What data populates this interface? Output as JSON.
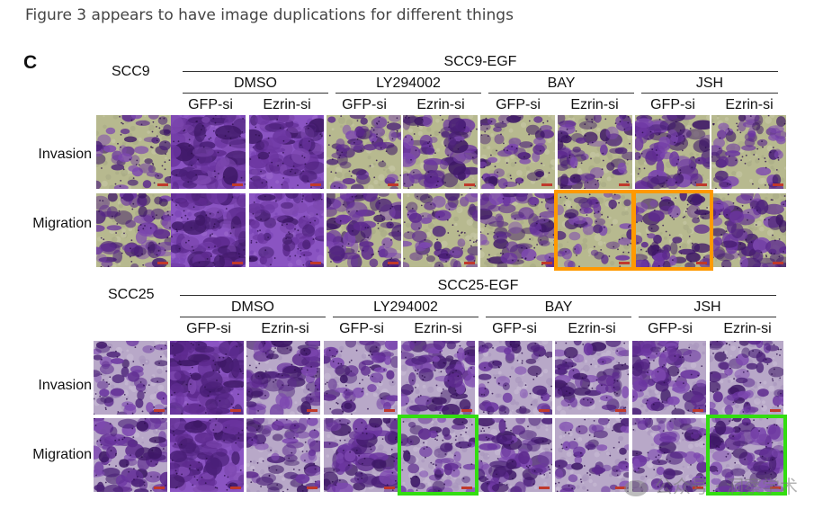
{
  "caption": "Figure 3 appears to have image duplications for different things",
  "panel_label": "C",
  "watermark": "公众号 · 洞察学术",
  "highlight_colors": {
    "orange": "#ff9900",
    "green": "#33dd11"
  },
  "groups": [
    {
      "cell_line": "SCC9",
      "treatment_header": "SCC9-EGF",
      "treatments": [
        "DMSO",
        "LY294002",
        "BAY",
        "JSH"
      ],
      "sirnas": [
        "GFP-si",
        "Ezrin-si",
        "GFP-si",
        "Ezrin-si",
        "GFP-si",
        "Ezrin-si",
        "GFP-si",
        "Ezrin-si"
      ],
      "rows": [
        "Invasion",
        "Migration"
      ],
      "highlighted": [
        {
          "row": "Migration",
          "treatment": "BAY",
          "sirna": "Ezrin-si",
          "color": "orange"
        },
        {
          "row": "Migration",
          "treatment": "JSH",
          "sirna": "GFP-si",
          "color": "orange"
        }
      ]
    },
    {
      "cell_line": "SCC25",
      "treatment_header": "SCC25-EGF",
      "treatments": [
        "DMSO",
        "LY294002",
        "BAY",
        "JSH"
      ],
      "sirnas": [
        "GFP-si",
        "Ezrin-si",
        "GFP-si",
        "Ezrin-si",
        "GFP-si",
        "Ezrin-si",
        "GFP-si",
        "Ezrin-si"
      ],
      "rows": [
        "Invasion",
        "Migration"
      ],
      "highlighted": [
        {
          "row": "Migration",
          "treatment": "LY294002",
          "sirna": "Ezrin-si",
          "color": "green"
        },
        {
          "row": "Migration",
          "treatment": "JSH",
          "sirna": "Ezrin-si",
          "color": "green"
        }
      ]
    }
  ]
}
